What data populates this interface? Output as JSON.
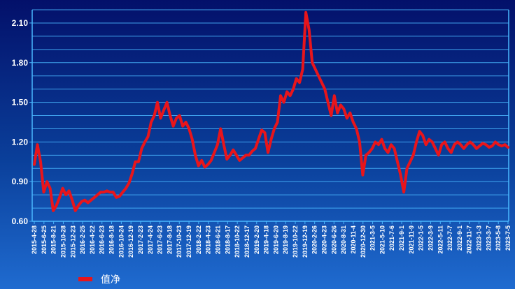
{
  "chart_data": {
    "type": "line",
    "title": "",
    "xlabel": "",
    "ylabel": "",
    "ylim": [
      0.6,
      2.2
    ],
    "y_ticks": [
      "0.60",
      "0.90",
      "1.20",
      "1.50",
      "1.80",
      "2.10"
    ],
    "x_ticks": [
      "2015-4-28",
      "2015-6-25",
      "2015-8-21",
      "2015-10-28",
      "2015-12-23",
      "2016-2-25",
      "2016-4-22",
      "2016-6-23",
      "2016-8-18",
      "2016-10-24",
      "2016-12-19",
      "2017-2-23",
      "2017-4-24",
      "2017-6-23",
      "2017-8-18",
      "2017-10-23",
      "2017-12-19",
      "2018-2-22",
      "2018-4-23",
      "2018-6-21",
      "2018-8-17",
      "2018-10-22",
      "2018-12-17",
      "2019-2-20",
      "2019-4-18",
      "2019-6-20",
      "2019-8-19",
      "2019-10-22",
      "2019-12-19",
      "2020-2-26",
      "2020-4-23",
      "2020-6-26",
      "2020-8-31",
      "2020-11-4",
      "2020-12-30",
      "2021-3-5",
      "2021-5-10",
      "2021-7-6",
      "2021-9-1",
      "2021-11-9",
      "2022-1-5",
      "2022-3-9",
      "2022-5-11",
      "2022-7-7",
      "2022-9-1",
      "2022-11-7",
      "2023-1-3",
      "2023-3-7",
      "2023-5-8",
      "2023-7-5"
    ],
    "grid": true,
    "legend_position": "bottom-left",
    "series": [
      {
        "name": "值净",
        "color": "#e8151b",
        "x": [
          0,
          1,
          2,
          3,
          4,
          5,
          6,
          7,
          8,
          9,
          10,
          11,
          12,
          13,
          14,
          15,
          16,
          17,
          18,
          19,
          20,
          21,
          22,
          23,
          24,
          25,
          26,
          27,
          28,
          29,
          30,
          31,
          32,
          33,
          34,
          35,
          36,
          37,
          38,
          39,
          40,
          41,
          42,
          43,
          44,
          45,
          46,
          47,
          48,
          49,
          50,
          51,
          52,
          53,
          54,
          55,
          56,
          57,
          58,
          59,
          60,
          61,
          62,
          63,
          64,
          65,
          66,
          67,
          68,
          69,
          70,
          71,
          72,
          73,
          74,
          75,
          76,
          77,
          78,
          79,
          80,
          81,
          82,
          83,
          84,
          85,
          86,
          87,
          88,
          89,
          90,
          91,
          92,
          93,
          94,
          95,
          96,
          97,
          98,
          99,
          100,
          101,
          102,
          103,
          104,
          105,
          106,
          107,
          108,
          109,
          110,
          111,
          112,
          113,
          114,
          115,
          116,
          117,
          118,
          119,
          120,
          121,
          122,
          123,
          124,
          125,
          126,
          127,
          128,
          129,
          130,
          131,
          132,
          133,
          134,
          135,
          136,
          137,
          138,
          139,
          140,
          141,
          142,
          143,
          144,
          145,
          146,
          147,
          148,
          149,
          150
        ],
        "values": [
          1.03,
          1.18,
          1.05,
          0.82,
          0.9,
          0.85,
          0.68,
          0.72,
          0.78,
          0.85,
          0.8,
          0.83,
          0.76,
          0.68,
          0.72,
          0.75,
          0.76,
          0.74,
          0.76,
          0.78,
          0.8,
          0.82,
          0.82,
          0.83,
          0.82,
          0.82,
          0.78,
          0.79,
          0.82,
          0.85,
          0.89,
          0.96,
          1.05,
          1.05,
          1.15,
          1.2,
          1.24,
          1.35,
          1.4,
          1.5,
          1.38,
          1.44,
          1.5,
          1.4,
          1.32,
          1.38,
          1.4,
          1.32,
          1.35,
          1.3,
          1.22,
          1.1,
          1.02,
          1.06,
          1.01,
          1.03,
          1.06,
          1.12,
          1.18,
          1.3,
          1.18,
          1.07,
          1.1,
          1.14,
          1.1,
          1.06,
          1.08,
          1.1,
          1.1,
          1.13,
          1.15,
          1.22,
          1.29,
          1.27,
          1.12,
          1.22,
          1.3,
          1.35,
          1.55,
          1.5,
          1.58,
          1.55,
          1.6,
          1.68,
          1.65,
          1.75,
          2.18,
          2.05,
          1.8,
          1.75,
          1.7,
          1.65,
          1.6,
          1.5,
          1.4,
          1.55,
          1.42,
          1.48,
          1.45,
          1.38,
          1.42,
          1.35,
          1.3,
          1.2,
          0.95,
          1.1,
          1.12,
          1.15,
          1.2,
          1.18,
          1.22,
          1.15,
          1.12,
          1.18,
          1.15,
          1.05,
          0.95,
          0.82,
          1.0,
          1.05,
          1.1,
          1.2,
          1.28,
          1.25,
          1.18,
          1.22,
          1.2,
          1.15,
          1.1,
          1.18,
          1.2,
          1.15,
          1.12,
          1.18,
          1.2,
          1.18,
          1.15,
          1.18,
          1.2,
          1.18,
          1.15,
          1.17,
          1.19,
          1.18,
          1.16,
          1.17,
          1.2,
          1.18,
          1.17,
          1.18,
          1.16
        ]
      }
    ]
  }
}
